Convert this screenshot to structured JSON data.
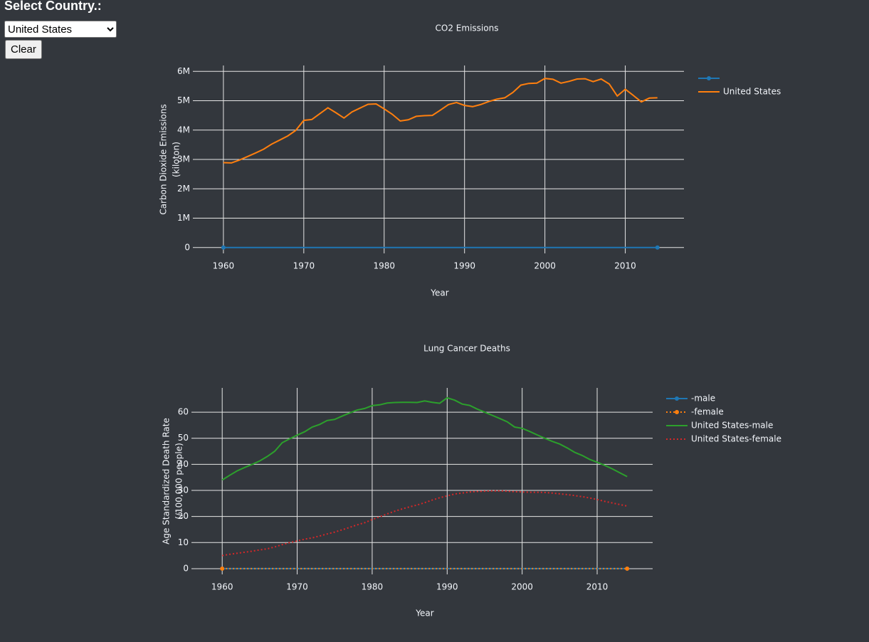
{
  "controls": {
    "label": "Select Country.:",
    "selected": "United States",
    "button": "Clear"
  },
  "chart_data": [
    {
      "type": "line",
      "title": "CO2 Emissions",
      "xlabel": "Year",
      "ylabel": [
        "Carbon Dioxide Emissions",
        "(kiloton)"
      ],
      "x": [
        1960,
        1961,
        1962,
        1963,
        1964,
        1965,
        1966,
        1967,
        1968,
        1969,
        1970,
        1971,
        1972,
        1973,
        1974,
        1975,
        1976,
        1977,
        1978,
        1979,
        1980,
        1981,
        1982,
        1983,
        1984,
        1985,
        1986,
        1987,
        1988,
        1989,
        1990,
        1991,
        1992,
        1993,
        1994,
        1995,
        1996,
        1997,
        1998,
        1999,
        2000,
        2001,
        2002,
        2003,
        2004,
        2005,
        2006,
        2007,
        2008,
        2009,
        2010,
        2011,
        2012,
        2013,
        2014
      ],
      "xlim": [
        1956.2,
        2017.3
      ],
      "xticks": [
        1960,
        1970,
        1980,
        1990,
        2000,
        2010
      ],
      "ylim": [
        -200000,
        6200000
      ],
      "yticks": [
        0,
        {
          "value": 1000000,
          "label": "1M"
        },
        {
          "value": 2000000,
          "label": "2M"
        },
        {
          "value": 3000000,
          "label": "3M"
        },
        {
          "value": 4000000,
          "label": "4M"
        },
        {
          "value": 5000000,
          "label": "5M"
        },
        {
          "value": 6000000,
          "label": "6M"
        }
      ],
      "grid": true,
      "legend": "right",
      "series": [
        {
          "color": "#1f77b4",
          "mode": "lines+markers",
          "x": [
            1960,
            2014
          ],
          "values": [
            0,
            0
          ]
        },
        {
          "name": "United States",
          "color": "#ff7f0e",
          "mode": "lines",
          "values": [
            2890000,
            2880000,
            2980000,
            3100000,
            3220000,
            3350000,
            3520000,
            3660000,
            3800000,
            3990000,
            4330000,
            4360000,
            4560000,
            4760000,
            4590000,
            4410000,
            4620000,
            4750000,
            4880000,
            4890000,
            4720000,
            4540000,
            4310000,
            4350000,
            4470000,
            4490000,
            4500000,
            4680000,
            4870000,
            4940000,
            4840000,
            4800000,
            4870000,
            4970000,
            5050000,
            5100000,
            5280000,
            5530000,
            5590000,
            5600000,
            5760000,
            5730000,
            5600000,
            5660000,
            5740000,
            5750000,
            5650000,
            5740000,
            5570000,
            5160000,
            5390000,
            5180000,
            4960000,
            5090000,
            5100000
          ]
        }
      ]
    },
    {
      "type": "line",
      "title": "Lung Cancer Deaths",
      "xlabel": "Year",
      "ylabel": [
        "Age Standardized Death Rate",
        "(/100,000 people)"
      ],
      "x": [
        1960,
        1961,
        1962,
        1963,
        1964,
        1965,
        1966,
        1967,
        1968,
        1969,
        1970,
        1971,
        1972,
        1973,
        1974,
        1975,
        1976,
        1977,
        1978,
        1979,
        1980,
        1981,
        1982,
        1983,
        1984,
        1985,
        1986,
        1987,
        1988,
        1989,
        1990,
        1991,
        1992,
        1993,
        1994,
        1995,
        1996,
        1997,
        1998,
        1999,
        2000,
        2001,
        2002,
        2003,
        2004,
        2005,
        2006,
        2007,
        2008,
        2009,
        2010,
        2011,
        2012,
        2013,
        2014
      ],
      "xlim": [
        1955.9,
        2017.4
      ],
      "xticks": [
        1960,
        1970,
        1980,
        1990,
        2000,
        2010
      ],
      "ylim": [
        -2.2,
        69.3
      ],
      "yticks": [
        0,
        10,
        20,
        30,
        40,
        50,
        60
      ],
      "grid": true,
      "legend": "right",
      "series": [
        {
          "name": "-male",
          "color": "#1f77b4",
          "mode": "lines+markers",
          "x": [
            1960,
            2014
          ],
          "values": [
            0,
            0
          ]
        },
        {
          "name": "-female",
          "color": "#ff7f0e",
          "mode": "lines+markers",
          "dash": "dot",
          "x": [
            1960,
            2014
          ],
          "values": [
            0,
            0
          ]
        },
        {
          "name": "United States-male",
          "color": "#2ca02c",
          "mode": "lines",
          "values": [
            34.0,
            35.8,
            37.5,
            38.8,
            40.0,
            41.3,
            43.0,
            45.0,
            48.3,
            49.8,
            51.2,
            52.5,
            54.3,
            55.3,
            56.8,
            57.2,
            58.5,
            59.7,
            60.8,
            61.4,
            62.5,
            62.8,
            63.5,
            63.7,
            63.8,
            63.8,
            63.7,
            64.3,
            63.8,
            63.4,
            65.5,
            64.6,
            63.1,
            62.6,
            61.2,
            60.0,
            58.8,
            57.6,
            56.3,
            54.3,
            53.8,
            52.6,
            51.3,
            50.0,
            48.8,
            47.8,
            46.3,
            44.6,
            43.4,
            41.9,
            40.8,
            39.6,
            38.3,
            36.8,
            35.3
          ]
        },
        {
          "name": "United States-female",
          "color": "#d62728",
          "mode": "lines",
          "dash": "dot",
          "values": [
            5.0,
            5.5,
            5.9,
            6.3,
            6.7,
            7.2,
            7.6,
            8.3,
            9.2,
            10.0,
            10.6,
            11.3,
            11.8,
            12.5,
            13.3,
            14.0,
            14.9,
            15.8,
            16.8,
            17.6,
            18.8,
            19.9,
            21.0,
            22.0,
            22.9,
            23.7,
            24.4,
            25.3,
            26.3,
            27.2,
            27.9,
            28.6,
            29.0,
            29.4,
            29.6,
            29.7,
            29.8,
            29.8,
            29.7,
            29.5,
            29.4,
            29.3,
            29.3,
            29.2,
            29.0,
            28.7,
            28.4,
            28.0,
            27.6,
            27.1,
            26.5,
            25.8,
            25.2,
            24.6,
            24.0
          ]
        }
      ]
    }
  ]
}
